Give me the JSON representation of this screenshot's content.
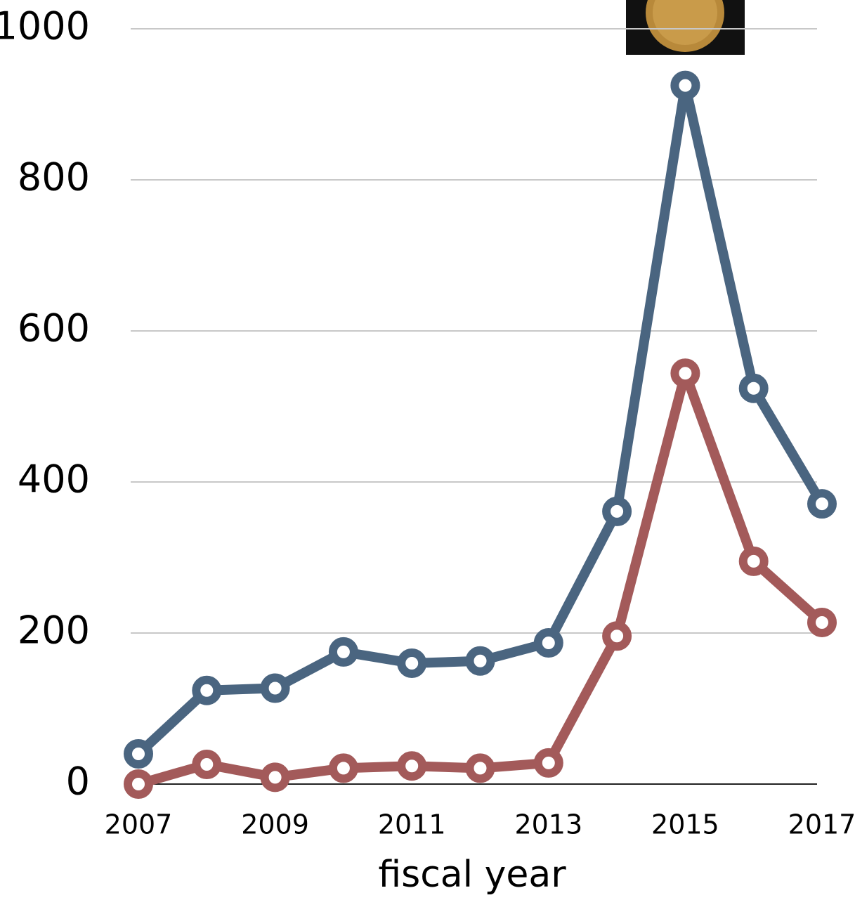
{
  "chart_data": {
    "type": "line",
    "x": [
      2007,
      2008,
      2009,
      2010,
      2011,
      2012,
      2013,
      2014,
      2015,
      2016,
      2017
    ],
    "series": [
      {
        "color": "#4a6580",
        "values": [
          40,
          124,
          127,
          175,
          160,
          163,
          187,
          361,
          925,
          524,
          371
        ]
      },
      {
        "color": "#a35a5a",
        "values": [
          0,
          26,
          9,
          21,
          24,
          21,
          28,
          196,
          544,
          295,
          214
        ]
      }
    ],
    "xlim": [
      2007,
      2017
    ],
    "xticks": [
      2007,
      2009,
      2011,
      2013,
      2015,
      2017
    ],
    "ylim": [
      0,
      1000
    ],
    "yticks": [
      0,
      200,
      400,
      600,
      800,
      1000
    ],
    "xlabel": "fiscal year",
    "grid": true
  }
}
